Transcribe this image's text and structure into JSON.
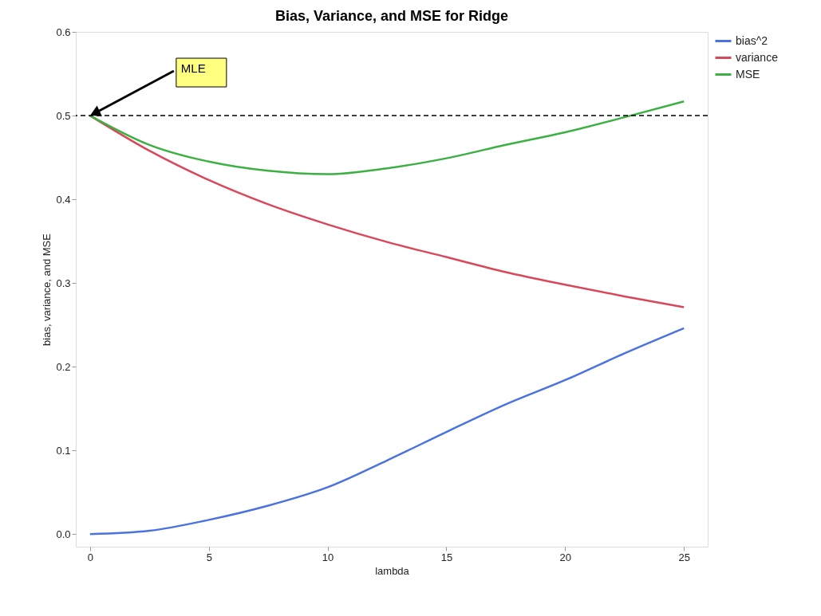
{
  "chart_data": {
    "type": "line",
    "title": "Bias, Variance, and MSE for Ridge",
    "xlabel": "lambda",
    "ylabel": "bias, variance, and MSE",
    "x": [
      0,
      2.5,
      5,
      7.5,
      10,
      12.5,
      15,
      17.5,
      20,
      22.5,
      25
    ],
    "series": [
      {
        "name": "bias^2",
        "color": "#4a72e0",
        "values": [
          0,
          0.004,
          0.017,
          0.034,
          0.056,
          0.088,
          0.122,
          0.155,
          0.184,
          0.216,
          0.246
        ]
      },
      {
        "name": "variance",
        "color": "#d9475a",
        "values": [
          0.5,
          0.458,
          0.423,
          0.394,
          0.37,
          0.349,
          0.331,
          0.313,
          0.298,
          0.284,
          0.271
        ]
      },
      {
        "name": "MSE",
        "color": "#3cb043",
        "values": [
          0.5,
          0.465,
          0.445,
          0.434,
          0.43,
          0.437,
          0.449,
          0.465,
          0.48,
          0.498,
          0.517
        ]
      }
    ],
    "xlim": [
      -0.6,
      26
    ],
    "xticks": [
      0,
      5,
      10,
      15,
      20,
      25
    ],
    "ylim": [
      -0.015,
      0.6
    ],
    "yticks": [
      {
        "value": 0,
        "label": "0.0"
      },
      0.1,
      0.2,
      0.3,
      0.4,
      0.5,
      0.6
    ],
    "ref_lines": [
      {
        "axis": "y",
        "value": 0.5,
        "color": "#000000",
        "line_style": "dashed"
      }
    ],
    "annotations": [
      {
        "text": "MLE",
        "x": 0,
        "y": 0.5
      }
    ],
    "grid": false,
    "legend": "top right",
    "line_style": "solid",
    "marker": "none"
  }
}
